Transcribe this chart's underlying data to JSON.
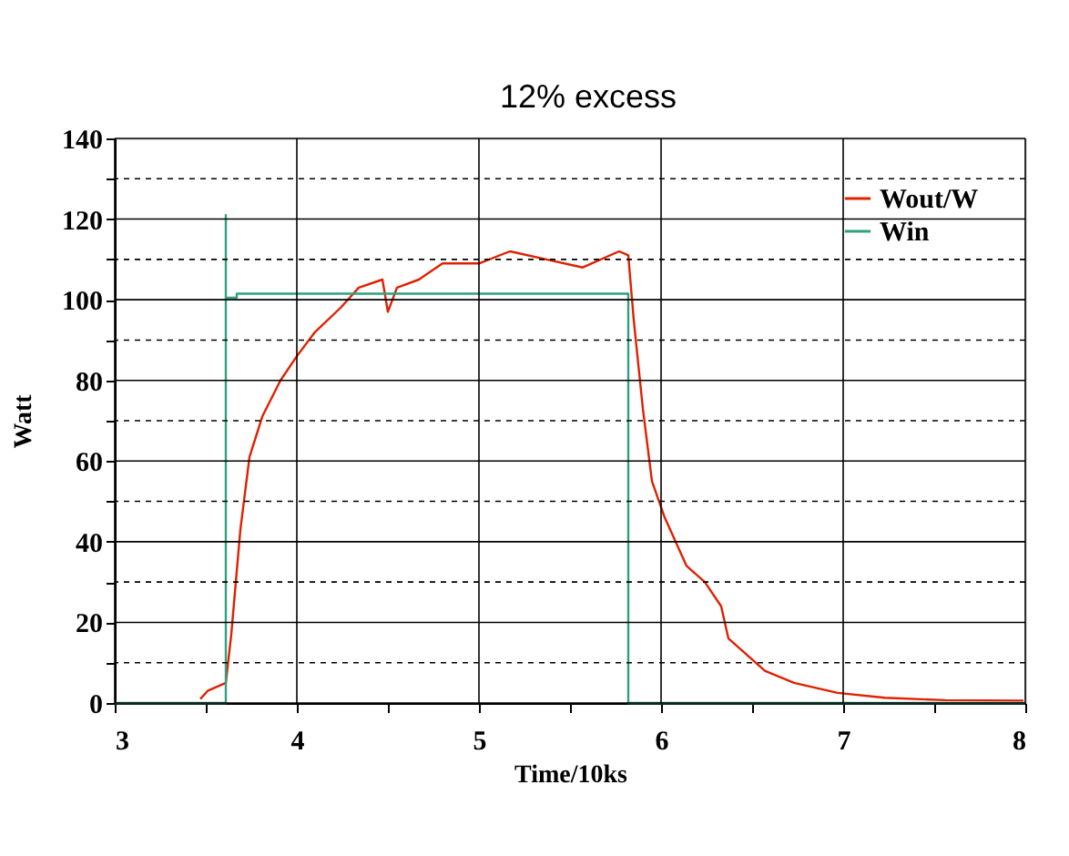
{
  "chart_data": {
    "type": "line",
    "xlabel": "Time/10ks",
    "ylabel": "Watt",
    "xlim": [
      3,
      8
    ],
    "ylim": [
      0,
      140
    ],
    "xticks": [
      3,
      {
        "value": 3.5,
        "label": null
      },
      4,
      {
        "value": 4.5,
        "label": null
      },
      5,
      {
        "value": 5.5,
        "label": null
      },
      6,
      {
        "value": 6.5,
        "label": null
      },
      7,
      {
        "value": 7.5,
        "label": null
      },
      8
    ],
    "yticks": [
      0,
      {
        "value": 10,
        "label": null
      },
      20,
      {
        "value": 30,
        "label": null
      },
      40,
      {
        "value": 50,
        "label": null
      },
      60,
      {
        "value": 70,
        "label": null
      },
      80,
      {
        "value": 90,
        "label": null
      },
      100,
      {
        "value": 110,
        "label": null
      },
      120,
      {
        "value": 130,
        "label": null
      },
      140
    ],
    "grid": true,
    "legend": "top right",
    "marker": "none",
    "line_style": "solid",
    "annotations": [
      "12% excess"
    ],
    "series": [
      {
        "name": "Wout/W",
        "color": "#e02000",
        "x": [
          3.47,
          3.51,
          3.61,
          3.64,
          3.69,
          3.74,
          3.81,
          3.91,
          4.0,
          4.1,
          4.24,
          4.34,
          4.47,
          4.5,
          4.55,
          4.67,
          4.8,
          5.0,
          5.17,
          5.37,
          5.57,
          5.77,
          5.82,
          5.85,
          5.9,
          5.95,
          6.02,
          6.14,
          6.24,
          6.33,
          6.37,
          6.47,
          6.57,
          6.73,
          6.97,
          7.23,
          7.56,
          7.99
        ],
        "values": [
          1,
          3,
          5,
          17,
          43,
          61,
          71,
          80,
          86,
          92,
          98,
          103,
          105,
          97,
          103,
          105,
          109,
          109,
          112,
          110,
          108,
          112,
          111,
          95,
          73,
          55,
          46,
          34,
          30,
          24,
          16,
          12,
          8,
          5,
          2.5,
          1.3,
          0.7,
          0.6
        ]
      },
      {
        "name": "Win",
        "color": "#30a080",
        "x": [
          3,
          3.61,
          3.61,
          3.61,
          3.67,
          3.67,
          5.82,
          5.82,
          8
        ],
        "values": [
          0,
          0,
          121,
          100.5,
          100.5,
          101.5,
          101.5,
          0,
          0
        ]
      }
    ]
  }
}
